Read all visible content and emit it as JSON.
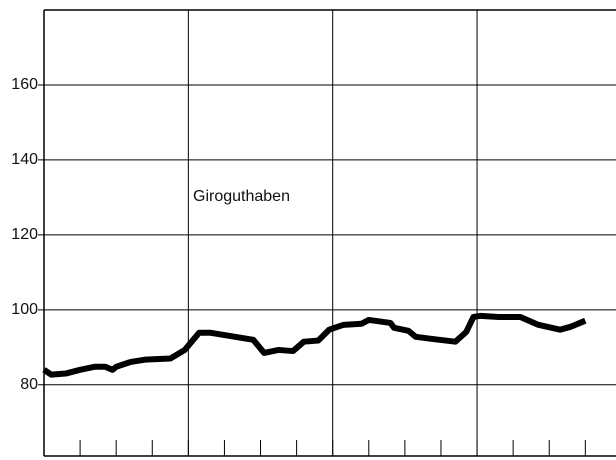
{
  "chart_data": {
    "type": "line",
    "annotation": "Giroguthaben",
    "series": [
      {
        "name": "Giroguthaben",
        "color": "#000000",
        "x": [
          0,
          0.2,
          0.6,
          1.0,
          1.4,
          1.7,
          1.9,
          2.0,
          2.4,
          2.8,
          3.5,
          3.9,
          4.3,
          4.6,
          5.8,
          6.1,
          6.5,
          6.9,
          7.2,
          7.6,
          7.9,
          8.3,
          8.8,
          9.0,
          9.6,
          9.7,
          10.1,
          10.3,
          10.7,
          11.4,
          11.7,
          11.9,
          12.1,
          12.6,
          13.2,
          13.7,
          14.3,
          14.6,
          15.0
        ],
        "values": [
          84,
          82.7,
          83,
          84,
          84.8,
          84.8,
          84,
          84.8,
          86.1,
          86.7,
          87,
          89.3,
          93.9,
          93.9,
          92,
          88.5,
          89.3,
          89,
          91.5,
          91.8,
          94.7,
          96,
          96.3,
          97.3,
          96.5,
          95.2,
          94.4,
          92.8,
          92.3,
          91.5,
          94.1,
          98.1,
          98.4,
          98.1,
          98.1,
          96,
          94.7,
          95.5,
          97.1
        ]
      }
    ],
    "xlim": [
      0,
      15.85
    ],
    "xticks": [
      0,
      1,
      2,
      3,
      4,
      5,
      6,
      7,
      8,
      9,
      10,
      11,
      12,
      13,
      14,
      15
    ],
    "xgrid": [
      4,
      8,
      12
    ],
    "ylim": [
      61,
      180
    ],
    "yticks": [
      80,
      100,
      120,
      140,
      160
    ],
    "grid": true
  }
}
